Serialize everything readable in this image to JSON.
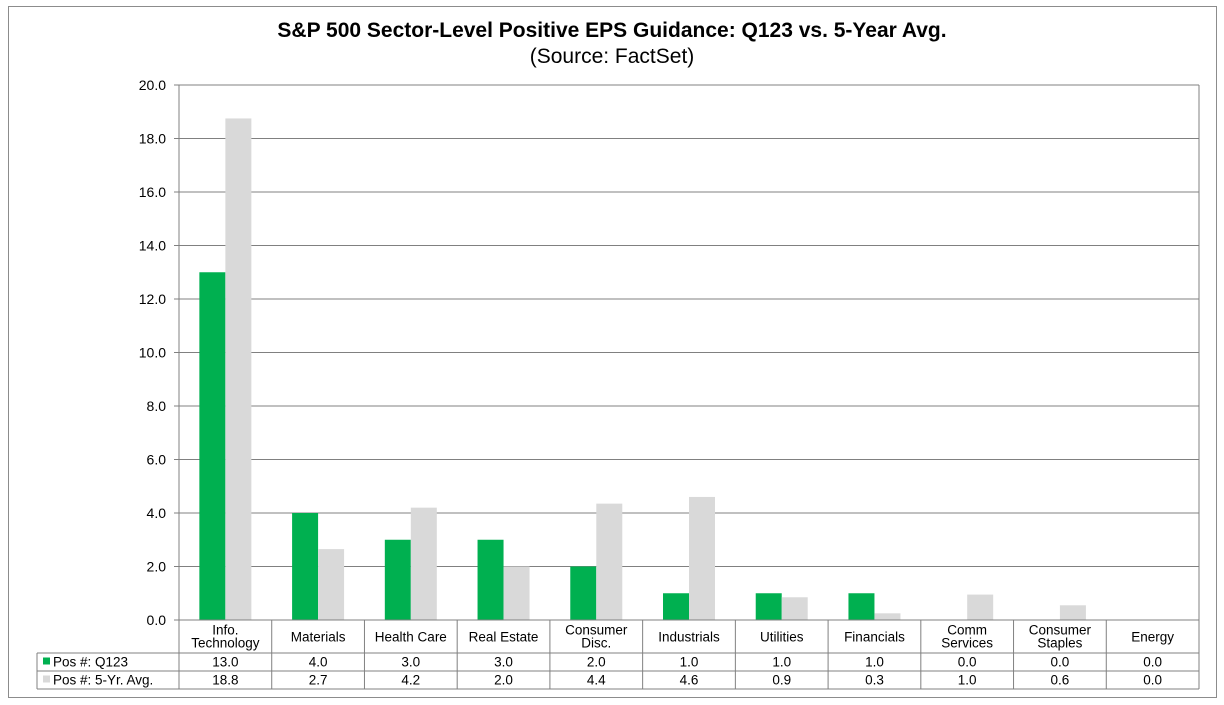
{
  "chart_data": {
    "type": "bar",
    "title": "S&P 500 Sector-Level Positive EPS Guidance: Q123 vs. 5-Year Avg.",
    "subtitle": "(Source: FactSet)",
    "xlabel": "",
    "ylabel": "",
    "ylim": [
      0,
      20
    ],
    "yticks": [
      "0.0",
      "2.0",
      "4.0",
      "6.0",
      "8.0",
      "10.0",
      "12.0",
      "14.0",
      "16.0",
      "18.0",
      "20.0"
    ],
    "ytick_values": [
      0,
      2,
      4,
      6,
      8,
      10,
      12,
      14,
      16,
      18,
      20
    ],
    "grid": true,
    "legend_placement": "data-table-left",
    "categories": [
      [
        "Info.",
        "Technology"
      ],
      [
        "Materials"
      ],
      [
        "Health Care"
      ],
      [
        "Real Estate"
      ],
      [
        "Consumer",
        "Disc."
      ],
      [
        "Industrials"
      ],
      [
        "Utilities"
      ],
      [
        "Financials"
      ],
      [
        "Comm",
        "Services"
      ],
      [
        "Consumer",
        "Staples"
      ],
      [
        "Energy"
      ]
    ],
    "series": [
      {
        "name": "Pos #: Q123",
        "color": "#00b050",
        "values": [
          13.0,
          4.0,
          3.0,
          3.0,
          2.0,
          1.0,
          1.0,
          1.0,
          0.0,
          0.0,
          0.0
        ],
        "labels": [
          "13.0",
          "4.0",
          "3.0",
          "3.0",
          "2.0",
          "1.0",
          "1.0",
          "1.0",
          "0.0",
          "0.0",
          "0.0"
        ]
      },
      {
        "name": "Pos #: 5-Yr. Avg.",
        "color": "#d9d9d9",
        "values": [
          18.75,
          2.65,
          4.2,
          2.0,
          4.35,
          4.6,
          0.85,
          0.25,
          0.95,
          0.55,
          0.0
        ],
        "labels": [
          "18.8",
          "2.7",
          "4.2",
          "2.0",
          "4.4",
          "4.6",
          "0.9",
          "0.3",
          "1.0",
          "0.6",
          "0.0"
        ]
      }
    ]
  }
}
